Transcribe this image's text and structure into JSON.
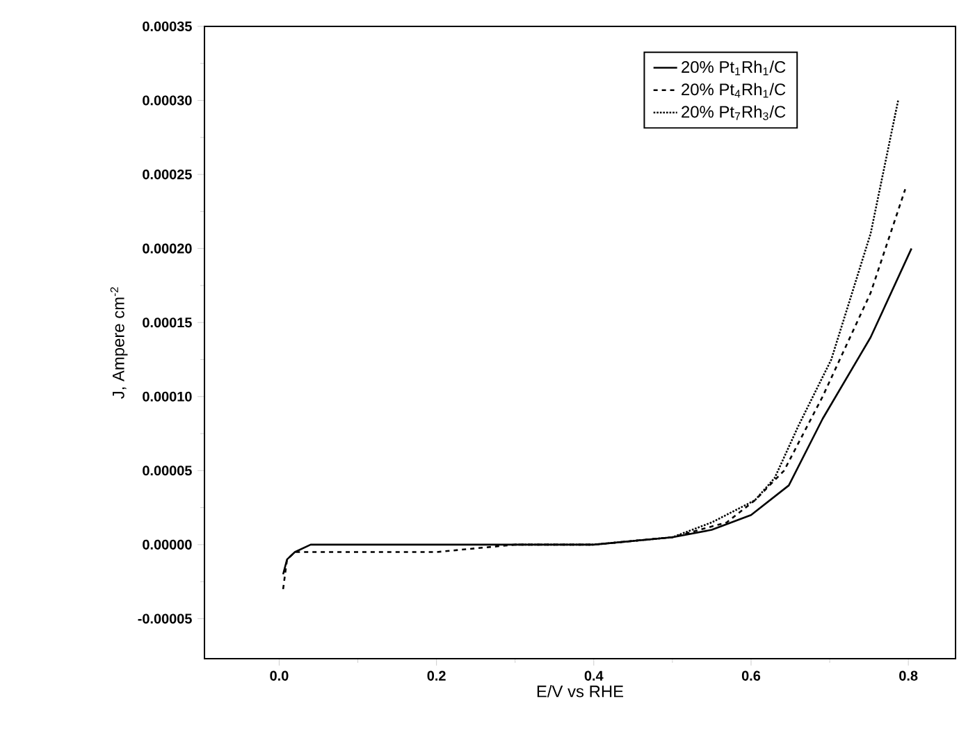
{
  "chart_data": {
    "type": "line",
    "xlabel": "E/V vs RHE",
    "ylabel": "J, Ampere cm$^{-2}$",
    "xlim": [
      -0.095,
      0.86
    ],
    "ylim": [
      -7.7e-05,
      0.00035
    ],
    "xticks": [
      {
        "value": 0.0,
        "label": "0.0"
      },
      {
        "value": 0.2,
        "label": "0.2"
      },
      {
        "value": 0.4,
        "label": "0.4"
      },
      {
        "value": 0.6,
        "label": "0.6"
      },
      {
        "value": 0.8,
        "label": "0.8"
      }
    ],
    "yticks": [
      {
        "value": -5e-05,
        "label": "-0.00005"
      },
      {
        "value": 0.0,
        "label": "0.00000"
      },
      {
        "value": 5e-05,
        "label": "0.00005"
      },
      {
        "value": 0.0001,
        "label": "0.00010"
      },
      {
        "value": 0.00015,
        "label": "0.00015"
      },
      {
        "value": 0.0002,
        "label": "0.00020"
      },
      {
        "value": 0.00025,
        "label": "0.00025"
      },
      {
        "value": 0.0003,
        "label": "0.00030"
      },
      {
        "value": 0.00035,
        "label": "0.00035"
      }
    ],
    "grid": false,
    "legend": "top right",
    "marker": "none",
    "series": [
      {
        "name": "20% Pt$_{1}$Rh$_{1}$/C",
        "color": "#000000",
        "line_style": "solid",
        "x": [
          0.005,
          0.01,
          0.02,
          0.04,
          0.1,
          0.2,
          0.3,
          0.4,
          0.5,
          0.55,
          0.6,
          0.648,
          0.691,
          0.752,
          0.804
        ],
        "values": [
          -2e-05,
          -1e-05,
          -5e-06,
          0.0,
          0.0,
          0.0,
          0.0,
          0.0,
          5e-06,
          1e-05,
          2e-05,
          4e-05,
          8.5e-05,
          0.00014,
          0.0002
        ]
      },
      {
        "name": "20% Pt$_{4}$Rh$_{1}$/C",
        "color": "#000000",
        "line_style": "dashed",
        "x": [
          0.005,
          0.01,
          0.02,
          0.05,
          0.1,
          0.2,
          0.3,
          0.4,
          0.5,
          0.569,
          0.605,
          0.642,
          0.691,
          0.752,
          0.796
        ],
        "values": [
          -3e-05,
          -1e-05,
          -5e-06,
          -5e-06,
          -5e-06,
          -5e-06,
          0.0,
          0.0,
          5e-06,
          1.5e-05,
          3e-05,
          5e-05,
          0.0001,
          0.00017,
          0.00024
        ]
      },
      {
        "name": "20% Pt$_{7}$Rh$_{3}$/C",
        "color": "#000000",
        "line_style": "dotted",
        "x": [
          0.3,
          0.4,
          0.5,
          0.55,
          0.605,
          0.63,
          0.66,
          0.702,
          0.752,
          0.787
        ],
        "values": [
          0.0,
          0.0,
          5e-06,
          1.5e-05,
          3e-05,
          4.5e-05,
          8e-05,
          0.000125,
          0.00021,
          0.0003
        ]
      }
    ]
  }
}
